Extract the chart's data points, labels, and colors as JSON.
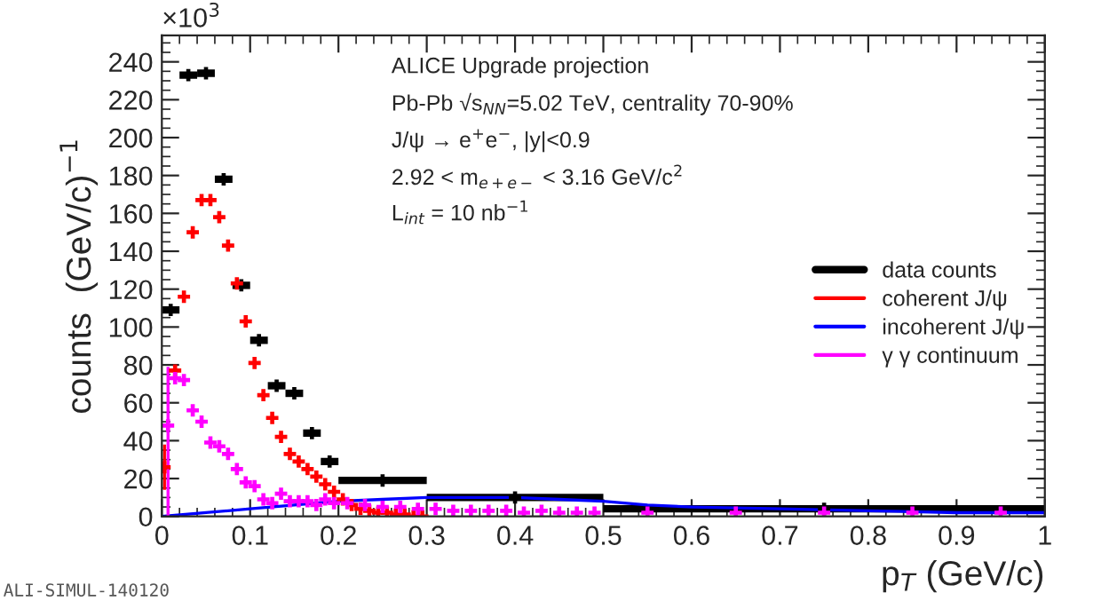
{
  "chart_data": {
    "type": "scatter",
    "xlabel": "p$_{T}$ (GeV/c)",
    "ylabel": "counts  (GeV/c)$^{−1}$",
    "xlim": [
      0,
      1
    ],
    "ylim": [
      0,
      254
    ],
    "xticks": [
      0,
      0.1,
      0.2,
      0.3,
      0.4,
      0.5,
      0.6,
      0.7,
      0.8,
      0.9,
      1
    ],
    "yticks": [
      0,
      20,
      40,
      60,
      80,
      100,
      120,
      140,
      160,
      180,
      200,
      220,
      240
    ],
    "grid": false,
    "legend": "right",
    "annotations": [
      "×10$^{3}$",
      "ALICE Upgrade projection",
      "Pb-Pb √s$_{NN}$=5.02 TeV, centrality 70-90%",
      "J/ψ → e$^{+}$e$^{−}$, |y|<0.9",
      "2.92 < m$_{e+e−}$ < 3.16 GeV/c$^{2}$",
      "L$_{int}$ = 10 nb$^{−1}$",
      "ALI-SIMUL-140120"
    ],
    "series": [
      {
        "name": "data counts",
        "color": "#000000",
        "marker": "cross",
        "x": [
          0.01,
          0.03,
          0.05,
          0.07,
          0.09,
          0.11,
          0.13,
          0.15,
          0.17,
          0.19,
          0.25,
          0.4,
          0.75
        ],
        "values": [
          109,
          233,
          234,
          178,
          122,
          93,
          69,
          65,
          44,
          29,
          19,
          10,
          4
        ],
        "xerrors": [
          0.01,
          0.01,
          0.01,
          0.01,
          0.01,
          0.01,
          0.01,
          0.01,
          0.01,
          0.01,
          0.05,
          0.1,
          0.25
        ]
      },
      {
        "name": "coherent J/ψ",
        "color": "#ff0000",
        "marker": "cross",
        "x": [
          0.003,
          0.015,
          0.025,
          0.035,
          0.045,
          0.055,
          0.065,
          0.075,
          0.085,
          0.095,
          0.105,
          0.115,
          0.125,
          0.135,
          0.145,
          0.155,
          0.165,
          0.175,
          0.185,
          0.195,
          0.205,
          0.215,
          0.225,
          0.235,
          0.245,
          0.255,
          0.265,
          0.275,
          0.285,
          0.295
        ],
        "values": [
          26,
          77,
          116,
          150,
          167,
          167,
          158,
          143,
          123,
          103,
          81,
          64,
          52,
          42,
          33,
          29,
          25,
          21,
          17,
          13,
          9,
          6,
          4,
          3,
          2,
          2,
          1,
          1,
          0,
          0
        ],
        "errors": [
          [
            14,
            38
          ],
          null,
          null,
          null,
          null,
          null,
          null,
          null,
          null,
          null,
          null,
          null,
          null,
          null,
          null,
          null,
          null,
          null,
          null,
          null,
          null,
          null,
          null,
          null,
          null,
          null,
          null,
          null,
          null,
          null
        ]
      },
      {
        "name": "incoherent J/ψ",
        "type": "line",
        "color": "#0000ff",
        "x": [
          0,
          0.05,
          0.1,
          0.15,
          0.2,
          0.25,
          0.3,
          0.35,
          0.4,
          0.45,
          0.5,
          0.55,
          0.6,
          0.7,
          0.8,
          0.9,
          1
        ],
        "values": [
          0,
          2,
          4,
          6,
          8,
          9,
          10,
          10,
          10,
          9,
          8,
          6,
          5,
          4,
          3,
          2,
          2
        ]
      },
      {
        "name": "γ γ continuum",
        "color": "#ff00ff",
        "marker": "cross",
        "x": [
          0.007,
          0.015,
          0.025,
          0.035,
          0.045,
          0.055,
          0.065,
          0.075,
          0.085,
          0.095,
          0.105,
          0.115,
          0.125,
          0.135,
          0.145,
          0.155,
          0.165,
          0.175,
          0.185,
          0.195,
          0.21,
          0.23,
          0.25,
          0.27,
          0.29,
          0.31,
          0.33,
          0.35,
          0.37,
          0.39,
          0.41,
          0.43,
          0.45,
          0.47,
          0.49,
          0.55,
          0.65,
          0.75,
          0.85,
          0.95
        ],
        "values": [
          48,
          73,
          72,
          56,
          50,
          39,
          37,
          33,
          25,
          18,
          16,
          9,
          7,
          12,
          8,
          8,
          8,
          6,
          9,
          7,
          7,
          6,
          5,
          5,
          4,
          4,
          3,
          3,
          3,
          3,
          2,
          3,
          2,
          2,
          2,
          2,
          2,
          2,
          2,
          2
        ],
        "errors": [
          [
            0,
            79
          ],
          null,
          null,
          null,
          null,
          null,
          null,
          null,
          null,
          null,
          null,
          null,
          null,
          null,
          null,
          null,
          null,
          null,
          null,
          null,
          null,
          null,
          null,
          null,
          null,
          null,
          null,
          null,
          null,
          null,
          null,
          null,
          null,
          null,
          null,
          null,
          null,
          null,
          null,
          null
        ]
      }
    ]
  }
}
